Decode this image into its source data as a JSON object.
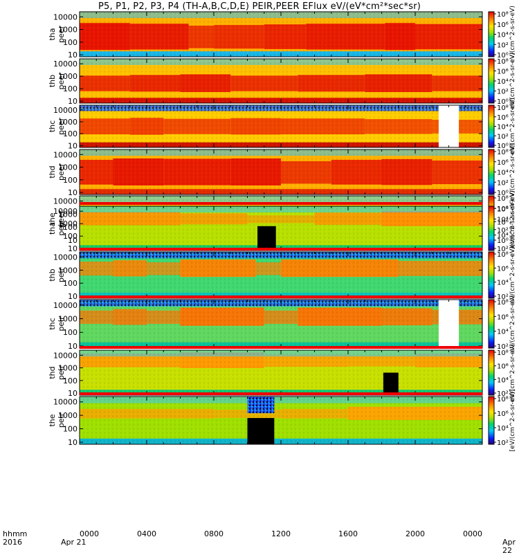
{
  "title": "P5, P1, P2, P3, P4 (TH-A,B,C,D,E) PEIR,PEER EFlux eV/(eV*cm²*sec*sr)",
  "footer": {
    "left_line1": "hhmm",
    "left_line2": "2016",
    "date_start": "Apr 21",
    "date_end": "Apr 22"
  },
  "colorbar_label_short": "eV/(cm^2-s-sr-eV)",
  "colorbar_label_bottom": "[eV/(cm^2-s-sr-eV)]",
  "chart_data": {
    "type": "heatmap",
    "x_ticks": [
      "0000",
      "0400",
      "0800",
      "1200",
      "1600",
      "2000",
      "0000"
    ],
    "x_range_hours": [
      0,
      24
    ],
    "y_scale": "log",
    "y_range_eV": [
      7,
      25000
    ],
    "y_ticks": [
      "10000",
      "1000",
      "100",
      "10"
    ],
    "colorbar_scale": "log",
    "colorbar_ticks_electron": [
      "10⁸",
      "10⁶",
      "10⁴",
      "10²",
      "10⁰"
    ],
    "colorbar_ticks_ion": [
      "10⁸",
      "10⁶",
      "10⁴",
      "10²"
    ],
    "panels": [
      {
        "probe": "tha",
        "species": "peer",
        "label1": "tha",
        "label2": "peer"
      },
      {
        "probe": "thb",
        "species": "peer",
        "label1": "thb",
        "label2": "peer"
      },
      {
        "probe": "thc",
        "species": "peer",
        "label1": "thc",
        "label2": "peer"
      },
      {
        "probe": "thd",
        "species": "peer",
        "label1": "thd",
        "label2": "peer"
      },
      {
        "probe": "the",
        "species": "peer",
        "label1": "the",
        "label2": "peer"
      },
      {
        "probe": "tha",
        "species": "peir",
        "label1": "tha",
        "label2": "peir"
      },
      {
        "probe": "thb",
        "species": "peir",
        "label1": "thb",
        "label2": "peir"
      },
      {
        "probe": "thc",
        "species": "peir",
        "label1": "thc",
        "label2": "peir"
      },
      {
        "probe": "thd",
        "species": "peir",
        "label1": "thd",
        "label2": "peir"
      },
      {
        "probe": "the",
        "species": "peir",
        "label1": "the",
        "label2": "peir"
      }
    ]
  }
}
